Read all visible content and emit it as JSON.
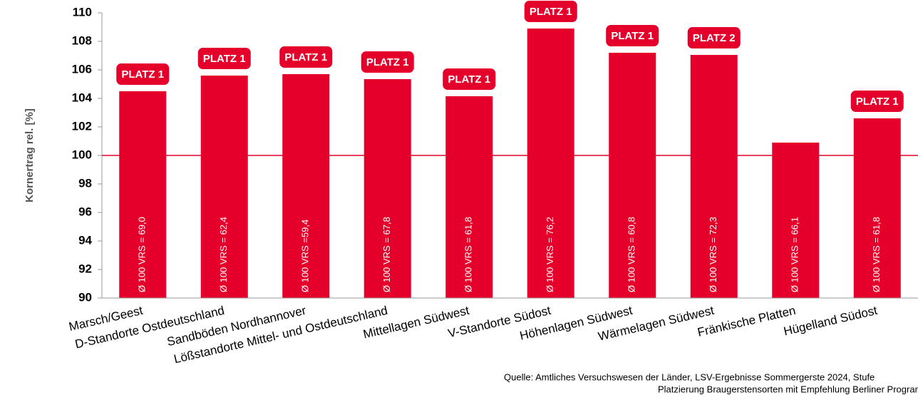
{
  "chart_data": {
    "type": "bar",
    "y_label": "Kornertrag rel. [%]",
    "categories": [
      "Marsch/Geest",
      "D-Standorte Ostdeutschland",
      "Sandböden Nordhannover",
      "Lößstandorte Mittel- und Ostdeutschland",
      "Mittellagen Südwest",
      "V-Standorte Südost",
      "Höhenlagen Südwest",
      "Wärmelagen Südwest",
      "Fränkische Platten",
      "Hügelland Südost"
    ],
    "values": [
      104.5,
      105.6,
      105.7,
      105.35,
      104.15,
      108.9,
      107.2,
      107.05,
      100.9,
      102.6
    ],
    "color": "#e4002b",
    "bar_annotations": [
      "Ø 100 VRS = 69,0",
      "Ø 100 VRS = 62,4",
      "Ø 100 VRS =59,4",
      "Ø 100 VRS = 67,8",
      "Ø 100 VRS = 61,8",
      "Ø 100 VRS = 76,2",
      "Ø 100 VRS = 60,8",
      "Ø 100 VRS = 72,3",
      "Ø 100 VRS = 66,1",
      "Ø 100 VRS = 61,8"
    ],
    "badges": [
      "PLATZ 1",
      "PLATZ 1",
      "PLATZ 1",
      "PLATZ 1",
      "PLATZ 1",
      "PLATZ 1",
      "PLATZ 1",
      "PLATZ 2",
      null,
      "PLATZ 1"
    ],
    "reference_line": 100,
    "reference_color": "#e4002b",
    "ylim": [
      90,
      110
    ],
    "yticks": [
      90,
      92,
      94,
      96,
      98,
      100,
      102,
      104,
      106,
      108,
      110
    ],
    "grid": false,
    "source": [
      "Quelle: Amtliches Versuchswesen der Länder, LSV-Ergebnisse Sommergerste 2024, Stufe",
      "Platzierung Braugerstensorten mit Empfehlung Berliner Programm"
    ]
  }
}
